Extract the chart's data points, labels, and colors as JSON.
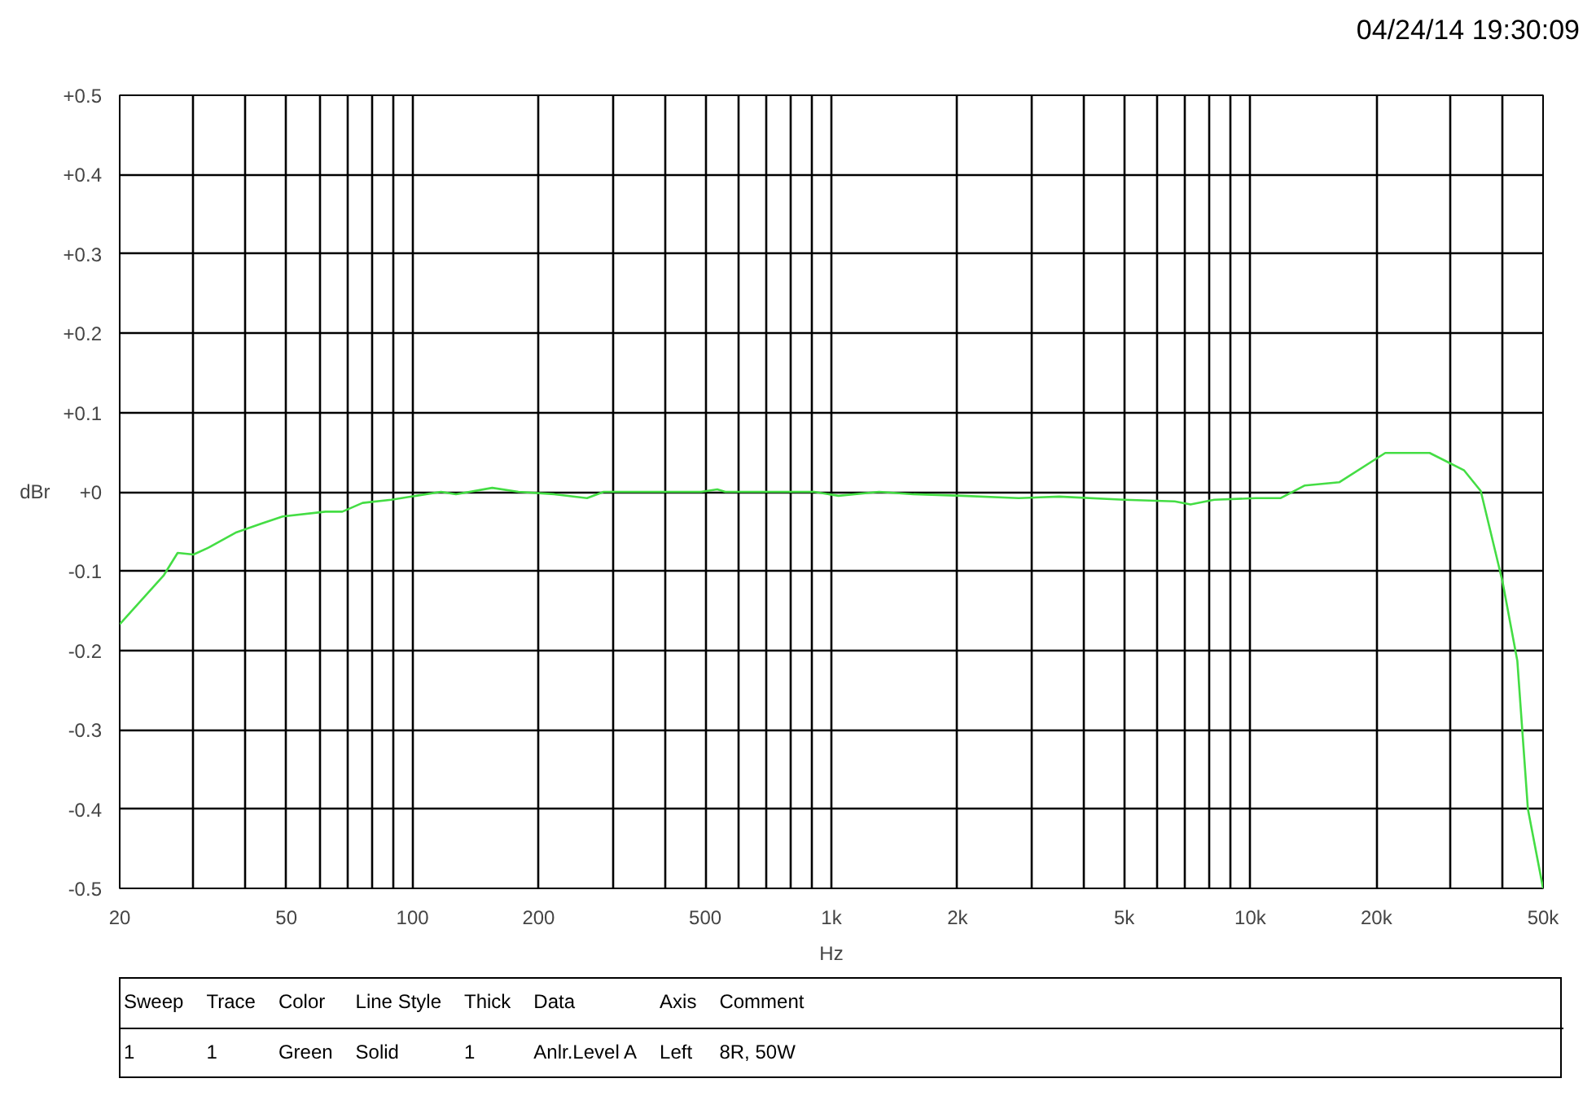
{
  "chart_data": {
    "type": "line",
    "xlabel": "Hz",
    "ylabel": "dBr",
    "annotations": [
      "04/24/14 19:30:09",
      "Sweep",
      "Trace",
      "Color",
      "Line Style",
      "Thick",
      "Data",
      "Axis",
      "Comment",
      "1",
      "1",
      "Green",
      "Solid",
      "1",
      "Anlr.Level A",
      "Left",
      "8R, 50W"
    ],
    "log": "x",
    "grid": true,
    "marker": "none",
    "line_style": "solid",
    "xlim": [
      20,
      50000
    ],
    "ylim": [
      -0.5,
      0.5
    ],
    "xticks": [
      20,
      {
        "value": 30,
        "label": null
      },
      {
        "value": 40,
        "label": null
      },
      50,
      {
        "value": 60,
        "label": null
      },
      {
        "value": 70,
        "label": null
      },
      {
        "value": 80,
        "label": null
      },
      {
        "value": 90,
        "label": null
      },
      100,
      200,
      {
        "value": 300,
        "label": null
      },
      {
        "value": 400,
        "label": null
      },
      500,
      {
        "value": 600,
        "label": null
      },
      {
        "value": 700,
        "label": null
      },
      {
        "value": 800,
        "label": null
      },
      {
        "value": 900,
        "label": null
      },
      {
        "value": 1000,
        "label": "1k"
      },
      {
        "value": 2000,
        "label": "2k"
      },
      {
        "value": 3000,
        "label": null
      },
      {
        "value": 4000,
        "label": null
      },
      {
        "value": 5000,
        "label": "5k"
      },
      {
        "value": 6000,
        "label": null
      },
      {
        "value": 7000,
        "label": null
      },
      {
        "value": 8000,
        "label": null
      },
      {
        "value": 9000,
        "label": null
      },
      {
        "value": 10000,
        "label": "10k"
      },
      {
        "value": 20000,
        "label": "20k"
      },
      {
        "value": 30000,
        "label": null
      },
      {
        "value": 40000,
        "label": null
      },
      {
        "value": 50000,
        "label": "50k"
      }
    ],
    "yticks": [
      {
        "value": 0.5,
        "label": "+0.5"
      },
      {
        "value": 0.4,
        "label": "+0.4"
      },
      {
        "value": 0.3,
        "label": "+0.3"
      },
      {
        "value": 0.2,
        "label": "+0.2"
      },
      {
        "value": 0.1,
        "label": "+0.1"
      },
      {
        "value": 0,
        "label": "+0"
      },
      -0.1,
      -0.2,
      -0.3,
      -0.4,
      -0.5
    ],
    "series": [
      {
        "color": "#44dd44",
        "x": [
          20,
          25.5,
          27.5,
          30,
          32.7,
          38,
          43.6,
          49,
          62,
          68,
          76,
          89,
          102,
          117,
          127,
          155,
          179,
          218,
          261,
          286,
          489,
          534,
          558,
          910,
          1040,
          1300,
          1570,
          2050,
          2800,
          3500,
          5000,
          6600,
          7200,
          8200,
          10300,
          11800,
          13500,
          16300,
          21000,
          26800,
          32400,
          35500,
          40000,
          43400,
          46000,
          50000
        ],
        "values": [
          -0.167,
          -0.105,
          -0.077,
          -0.079,
          -0.07,
          -0.051,
          -0.04,
          -0.031,
          -0.025,
          -0.025,
          -0.014,
          -0.01,
          -0.005,
          0,
          -0.003,
          0.005,
          0,
          -0.003,
          -0.008,
          0,
          0,
          0.003,
          0,
          0,
          -0.005,
          0,
          -0.003,
          -0.005,
          -0.008,
          -0.006,
          -0.01,
          -0.012,
          -0.016,
          -0.01,
          -0.008,
          -0.008,
          0.008,
          0.012,
          0.049,
          0.049,
          0.027,
          0.001,
          -0.113,
          -0.213,
          -0.4,
          -0.5
        ]
      }
    ]
  }
}
